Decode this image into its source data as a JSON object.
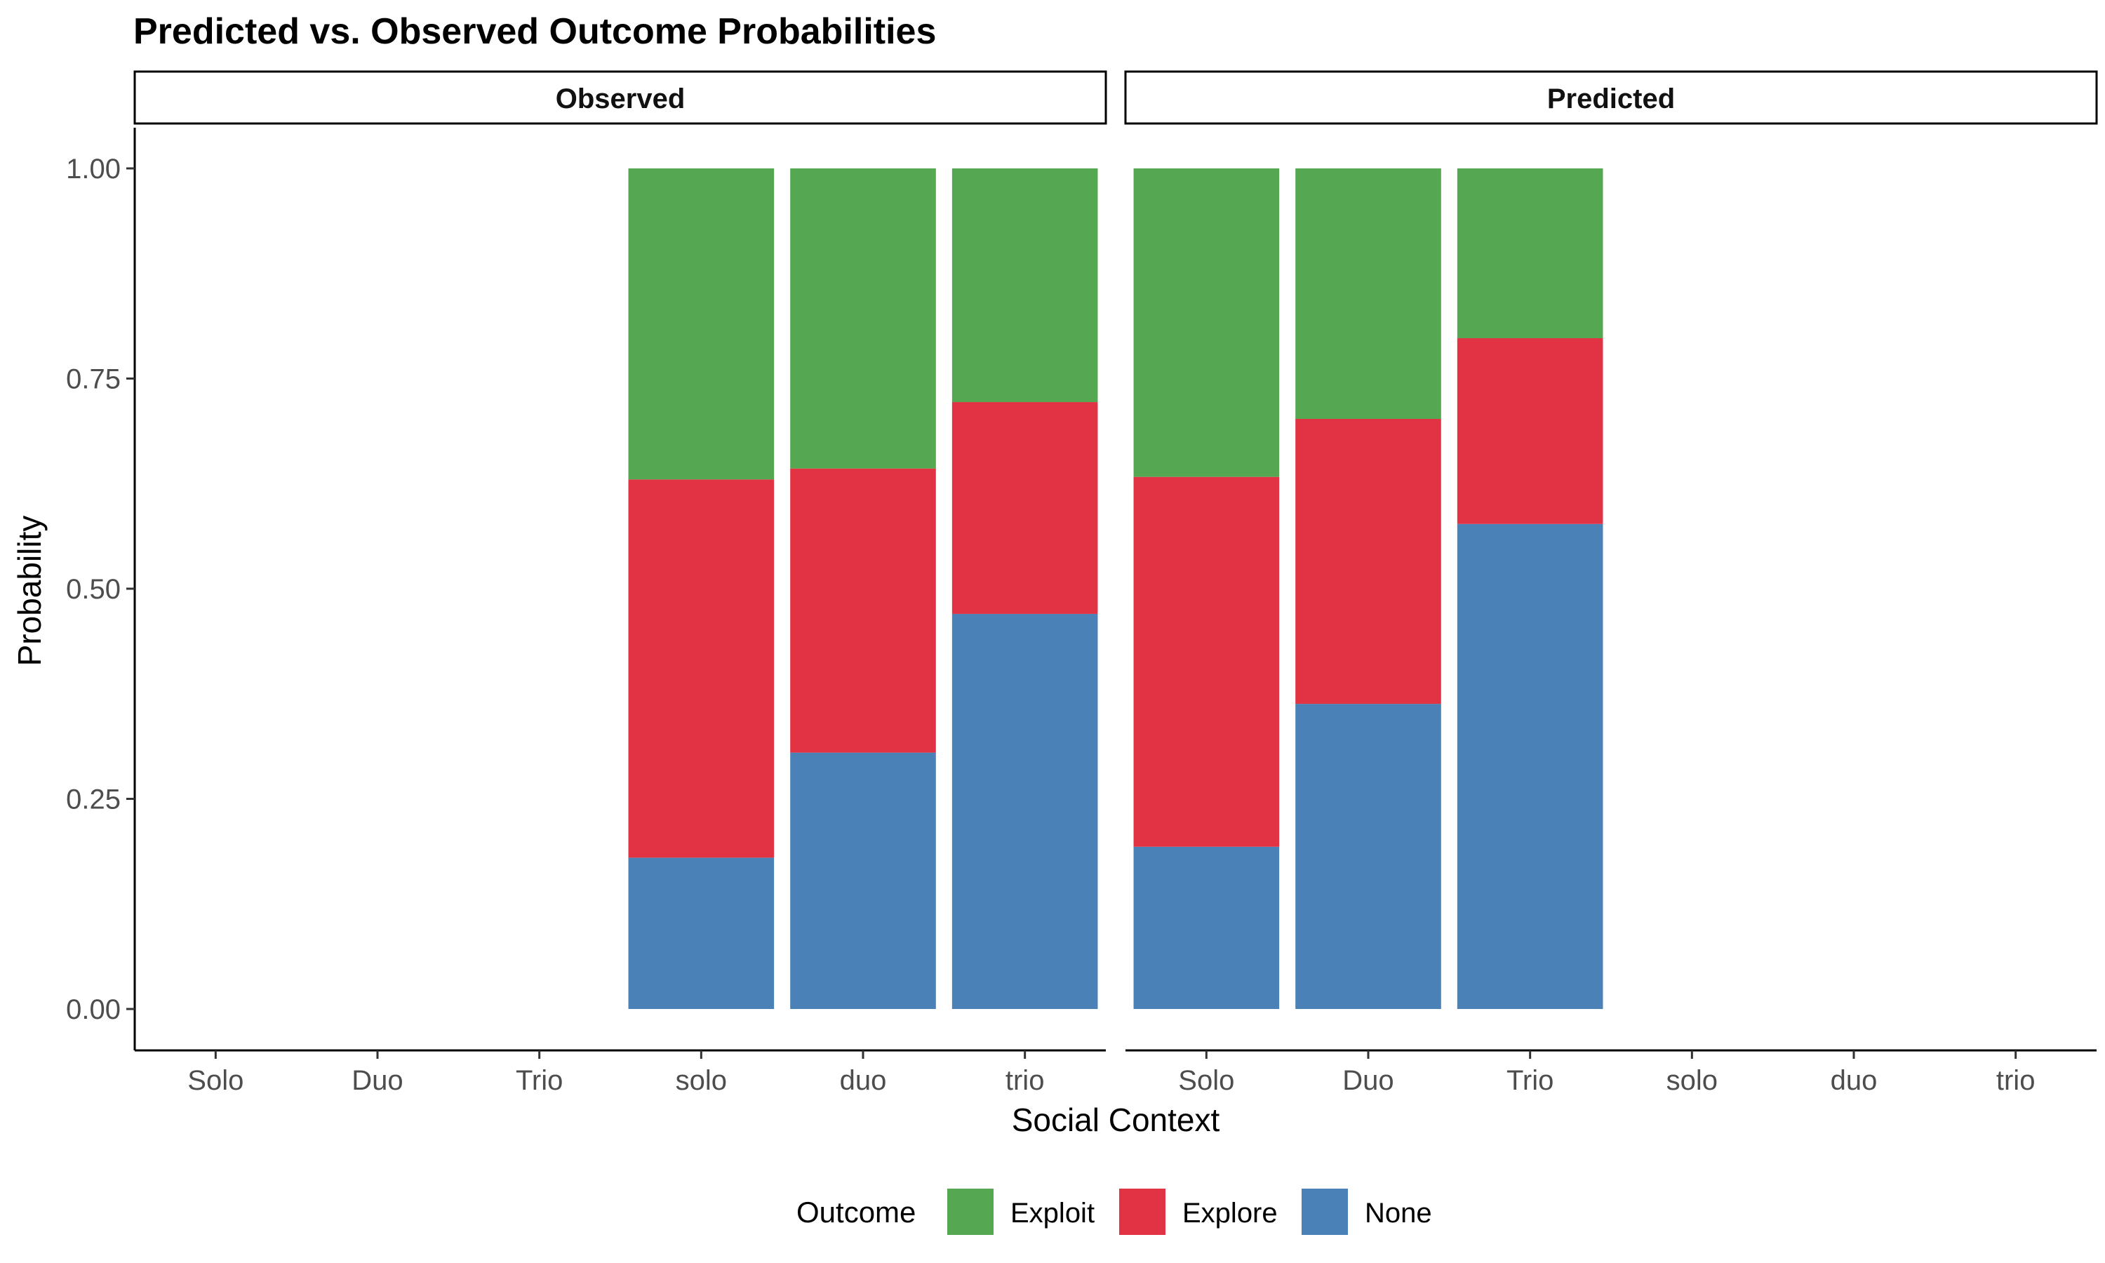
{
  "chart_data": {
    "type": "bar",
    "stacked": true,
    "title": "Predicted vs. Observed Outcome Probabilities",
    "xlabel": "Social Context",
    "ylabel": "Probability",
    "ylim": [
      0,
      1
    ],
    "yticks": [
      "0.00",
      "0.25",
      "0.50",
      "0.75",
      "1.00"
    ],
    "ytick_values": [
      0,
      0.25,
      0.5,
      0.75,
      1.0
    ],
    "categories": [
      "Solo",
      "Duo",
      "Trio",
      "solo",
      "duo",
      "trio"
    ],
    "grid": false,
    "legend_position": "bottom",
    "legend_title": "Outcome",
    "series_colors": {
      "Exploit": "#55A851",
      "Explore": "#E23345",
      "None": "#4A81B6"
    },
    "legend": [
      "Exploit",
      "Explore",
      "None"
    ],
    "panels": [
      {
        "name": "Observed",
        "bars": [
          {
            "category": "solo",
            "None": 0.18,
            "Explore": 0.45,
            "Exploit": 0.37
          },
          {
            "category": "duo",
            "None": 0.305,
            "Explore": 0.338,
            "Exploit": 0.357
          },
          {
            "category": "trio",
            "None": 0.47,
            "Explore": 0.252,
            "Exploit": 0.278
          }
        ]
      },
      {
        "name": "Predicted",
        "bars": [
          {
            "category": "Solo",
            "None": 0.193,
            "Explore": 0.44,
            "Exploit": 0.367
          },
          {
            "category": "Duo",
            "None": 0.363,
            "Explore": 0.339,
            "Exploit": 0.298
          },
          {
            "category": "Trio",
            "None": 0.577,
            "Explore": 0.221,
            "Exploit": 0.202
          }
        ]
      }
    ]
  }
}
